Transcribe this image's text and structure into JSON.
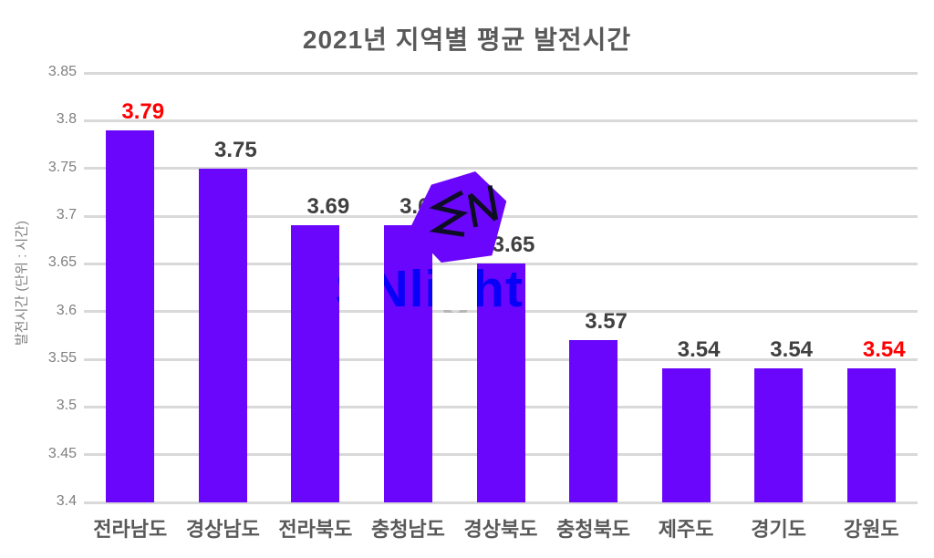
{
  "title": "2021년 지역별 평균 발전시간",
  "watermark": {
    "logo_monogram": "SN",
    "text": "SNlighten"
  },
  "chart_data": {
    "type": "bar",
    "title": "2021년 지역별 평균 발전시간",
    "categories": [
      "전라남도",
      "경상남도",
      "전라북도",
      "충청남도",
      "경상북도",
      "충청북도",
      "제주도",
      "경기도",
      "강원도"
    ],
    "values": [
      3.79,
      3.75,
      3.69,
      3.69,
      3.65,
      3.57,
      3.54,
      3.54,
      3.54
    ],
    "value_labels": [
      "3.79",
      "3.75",
      "3.69",
      "3.69",
      "3.65",
      "3.57",
      "3.54",
      "3.54",
      "3.54"
    ],
    "value_label_colors": [
      "#ff0000",
      "#404040",
      "#404040",
      "#404040",
      "#404040",
      "#404040",
      "#404040",
      "#404040",
      "#ff0000"
    ],
    "xlabel": "",
    "ylabel": "발전시간 (단위 : 시간)",
    "ylim": [
      3.4,
      3.85
    ],
    "ytick_labels": [
      "3.85",
      "3.8",
      "3.75",
      "3.7",
      "3.65",
      "3.6",
      "3.55",
      "3.5",
      "3.45",
      "3.4"
    ],
    "grid": true,
    "legend": "none",
    "bar_color": "#6a06fb",
    "gridline_color": "#d9d9d9",
    "highlight_color": "#ff0000",
    "label_color": "#404040",
    "tick_color": "#808080",
    "category_color": "#595959"
  }
}
